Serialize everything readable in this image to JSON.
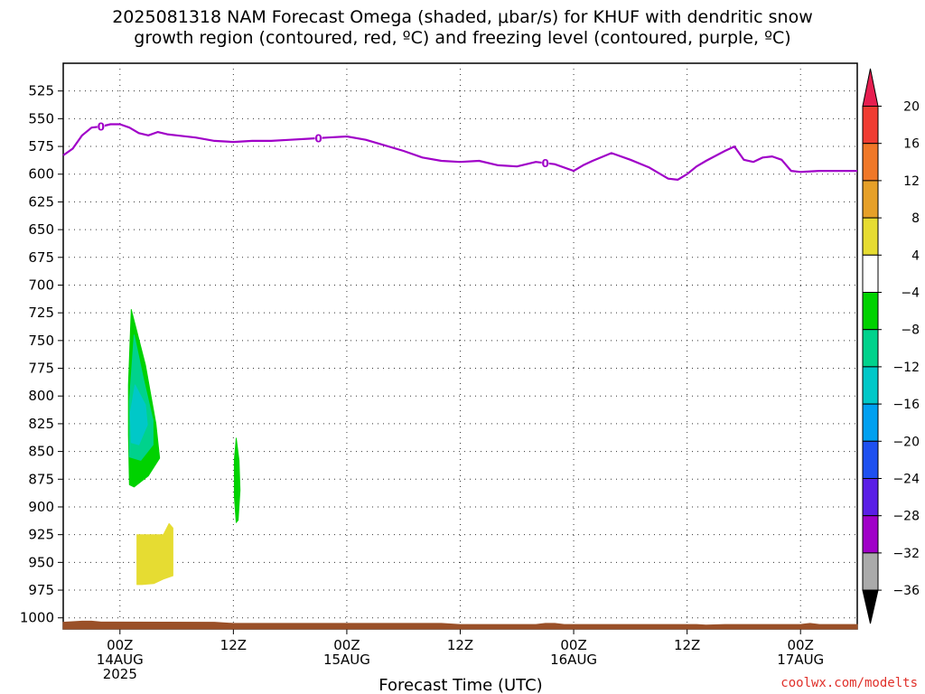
{
  "title": {
    "line1": "2025081318 NAM Forecast Omega (shaded, μbar/s) for KHUF with dendritic snow",
    "line2": "growth region (contoured, red, ºC) and freezing level (contoured, purple, ºC)"
  },
  "credit": "coolwx.com/modelts",
  "chart_data": {
    "type": "area",
    "xlabel": "Forecast Time (UTC)",
    "ylabel": "",
    "x_unit": "hours since 2025-08-13 18Z",
    "xlim": [
      0,
      84
    ],
    "x_ticks": [
      {
        "x": 6,
        "lines": [
          "00Z",
          "14AUG",
          "2025"
        ]
      },
      {
        "x": 18,
        "lines": [
          "12Z"
        ]
      },
      {
        "x": 30,
        "lines": [
          "00Z",
          "15AUG"
        ]
      },
      {
        "x": 42,
        "lines": [
          "12Z"
        ]
      },
      {
        "x": 54,
        "lines": [
          "00Z",
          "16AUG"
        ]
      },
      {
        "x": 66,
        "lines": [
          "12Z"
        ]
      },
      {
        "x": 78,
        "lines": [
          "00Z",
          "17AUG"
        ]
      }
    ],
    "y_axis": "pressure (mb)",
    "ylim": [
      500,
      1010
    ],
    "y_ticks": [
      525,
      550,
      575,
      600,
      625,
      650,
      675,
      700,
      725,
      750,
      775,
      800,
      825,
      850,
      875,
      900,
      925,
      950,
      975,
      1000
    ],
    "grid": true,
    "freezing_level": {
      "label": "0",
      "color": "#a000c8",
      "points": [
        [
          0,
          583
        ],
        [
          1,
          577
        ],
        [
          2,
          565
        ],
        [
          3,
          558
        ],
        [
          4,
          557
        ],
        [
          5,
          555
        ],
        [
          6,
          555
        ],
        [
          7,
          558
        ],
        [
          8,
          563
        ],
        [
          9,
          565
        ],
        [
          10,
          562
        ],
        [
          11,
          564
        ],
        [
          12,
          565
        ],
        [
          14,
          567
        ],
        [
          16,
          570
        ],
        [
          18,
          571
        ],
        [
          20,
          570
        ],
        [
          22,
          570
        ],
        [
          24,
          569
        ],
        [
          26,
          568
        ],
        [
          28,
          567
        ],
        [
          30,
          566
        ],
        [
          32,
          569
        ],
        [
          34,
          574
        ],
        [
          36,
          579
        ],
        [
          38,
          585
        ],
        [
          40,
          588
        ],
        [
          42,
          589
        ],
        [
          44,
          588
        ],
        [
          46,
          592
        ],
        [
          48,
          593
        ],
        [
          50,
          589
        ],
        [
          52,
          591
        ],
        [
          54,
          597
        ],
        [
          55,
          592
        ],
        [
          56,
          588
        ],
        [
          58,
          581
        ],
        [
          60,
          587
        ],
        [
          62,
          594
        ],
        [
          64,
          604
        ],
        [
          65,
          605
        ],
        [
          66,
          600
        ],
        [
          67,
          593
        ],
        [
          68,
          588
        ],
        [
          70,
          579
        ],
        [
          71,
          575
        ],
        [
          72,
          587
        ],
        [
          73,
          589
        ],
        [
          74,
          585
        ],
        [
          75,
          584
        ],
        [
          76,
          587
        ],
        [
          77,
          597
        ],
        [
          78,
          598
        ],
        [
          80,
          597
        ],
        [
          84,
          597
        ]
      ],
      "label_positions": [
        4,
        27,
        51
      ]
    },
    "omega_regions": [
      {
        "color": "#00d200",
        "points": [
          [
            7.2,
            722
          ],
          [
            8.7,
            772
          ],
          [
            9.8,
            825
          ],
          [
            10.2,
            856
          ],
          [
            9.0,
            872
          ],
          [
            7.5,
            882
          ],
          [
            7.0,
            880
          ],
          [
            6.9,
            835
          ],
          [
            6.9,
            790
          ]
        ]
      },
      {
        "color": "#00d28c",
        "points": [
          [
            7.5,
            745
          ],
          [
            8.5,
            785
          ],
          [
            9.5,
            822
          ],
          [
            9.5,
            844
          ],
          [
            8.2,
            858
          ],
          [
            7.0,
            855
          ],
          [
            7.0,
            805
          ]
        ]
      },
      {
        "color": "#00c8c8",
        "points": [
          [
            7.6,
            790
          ],
          [
            8.7,
            808
          ],
          [
            8.9,
            826
          ],
          [
            8.0,
            844
          ],
          [
            7.2,
            842
          ],
          [
            7.1,
            815
          ]
        ]
      },
      {
        "color": "#00d200",
        "points": [
          [
            18.3,
            838
          ],
          [
            18.6,
            858
          ],
          [
            18.7,
            885
          ],
          [
            18.5,
            912
          ],
          [
            18.3,
            914
          ],
          [
            18.1,
            890
          ],
          [
            18.1,
            858
          ]
        ]
      },
      {
        "color": "#e6dc32",
        "points": [
          [
            7.8,
            925
          ],
          [
            10.6,
            925
          ],
          [
            11.2,
            915
          ],
          [
            11.6,
            919
          ],
          [
            11.6,
            962
          ],
          [
            10.6,
            965
          ],
          [
            9.6,
            969
          ],
          [
            8.3,
            970
          ],
          [
            7.8,
            970
          ]
        ]
      }
    ],
    "surface_pressure": {
      "color": "#9a5028",
      "points": [
        [
          0,
          1004
        ],
        [
          1,
          1003.5
        ],
        [
          2,
          1003
        ],
        [
          3,
          1003
        ],
        [
          4,
          1003.8
        ],
        [
          16,
          1004
        ],
        [
          18,
          1005
        ],
        [
          40,
          1005
        ],
        [
          42,
          1006
        ],
        [
          50,
          1006
        ],
        [
          51,
          1005
        ],
        [
          52,
          1005
        ],
        [
          53,
          1006
        ],
        [
          67,
          1006
        ],
        [
          68,
          1006.5
        ],
        [
          70,
          1006
        ],
        [
          78,
          1006
        ],
        [
          79,
          1005
        ],
        [
          80,
          1006
        ],
        [
          84,
          1006
        ]
      ]
    },
    "colorbar": {
      "labels": [
        "20",
        "16",
        "12",
        "8",
        "4",
        "−4",
        "−8",
        "−12",
        "−16",
        "−20",
        "−24",
        "−28",
        "−32",
        "−36"
      ],
      "colors_top_to_bottom": [
        "#e61e50",
        "#f03c32",
        "#f07828",
        "#e6a028",
        "#e6dc32",
        "#ffffff",
        "#00d200",
        "#00d28c",
        "#00c8c8",
        "#00a0f0",
        "#1e50f0",
        "#5a1ee6",
        "#a000c8",
        "#aaaaaa",
        "#000000"
      ]
    }
  }
}
